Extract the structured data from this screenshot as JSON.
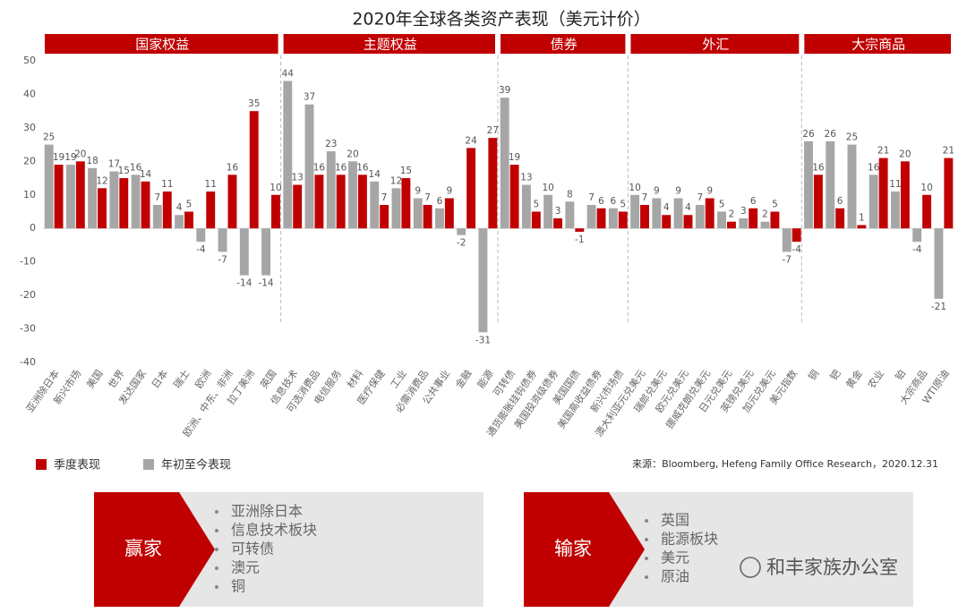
{
  "chart_data": {
    "type": "bar",
    "title": "2020年全球各类资产表现（美元计价）",
    "groups": [
      {
        "name": "国家权益",
        "categories": [
          "亚洲除日本",
          "新兴市场",
          "美国",
          "世界",
          "发达国家",
          "日本",
          "瑞士",
          "欧洲",
          "欧洲、中东、非洲",
          "拉丁美洲",
          "英国"
        ]
      },
      {
        "name": "主题权益",
        "categories": [
          "信息技术",
          "可选消费品",
          "电信服务",
          "材料",
          "医疗保健",
          "工业",
          "必需消费品",
          "公共事业",
          "金融",
          "能源"
        ]
      },
      {
        "name": "债券",
        "categories": [
          "可转债",
          "通货膨胀挂钩债券",
          "美国投资级债券",
          "美国国债",
          "美国高收益债券",
          "新兴市场债"
        ]
      },
      {
        "name": "外汇",
        "categories": [
          "澳大利亚元兑美元",
          "瑞郎兑美元",
          "欧元兑美元",
          "挪威克朗兑美元",
          "日元兑美元",
          "英镑兑美元",
          "加元兑美元",
          "美元指数"
        ]
      },
      {
        "name": "大宗商品",
        "categories": [
          "铜",
          "钯",
          "黄金",
          "农业",
          "铂",
          "大宗商品",
          "WTI原油"
        ]
      }
    ],
    "series": [
      {
        "name": "季度表现",
        "color": "#c00000",
        "values": [
          19,
          20,
          12,
          15,
          14,
          11,
          5,
          11,
          16,
          35,
          10,
          13,
          16,
          16,
          16,
          7,
          15,
          7,
          9,
          24,
          27,
          19,
          5,
          3,
          -1,
          6,
          5,
          7,
          4,
          4,
          9,
          2,
          6,
          5,
          -4,
          16,
          6,
          1,
          21,
          20,
          10,
          21
        ]
      },
      {
        "name": "年初至今表现",
        "color": "#a6a6a6",
        "values": [
          25,
          19,
          18,
          17,
          16,
          7,
          4,
          -4,
          -7,
          -14,
          -14,
          44,
          37,
          23,
          20,
          14,
          12,
          9,
          6,
          -2,
          -31,
          39,
          13,
          10,
          8,
          7,
          6,
          10,
          9,
          9,
          7,
          5,
          3,
          2,
          -7,
          26,
          26,
          25,
          16,
          11,
          -4,
          -21
        ]
      }
    ],
    "ylim": [
      -40,
      50
    ],
    "yticks": [
      -40,
      -30,
      -20,
      -10,
      0,
      10,
      20,
      30,
      40,
      50
    ],
    "grid": false,
    "legend": "bottom-left",
    "source": "来源：Bloomberg, Hefeng Family Office Research，2020.12.31",
    "winners": {
      "label": "赢家",
      "items": [
        "亚洲除日本",
        "信息技术板块",
        "可转债",
        "澳元",
        "铜"
      ]
    },
    "losers": {
      "label": "输家",
      "items": [
        "英国",
        "能源板块",
        "美元",
        "原油"
      ]
    },
    "watermark": "和丰家族办公室"
  }
}
